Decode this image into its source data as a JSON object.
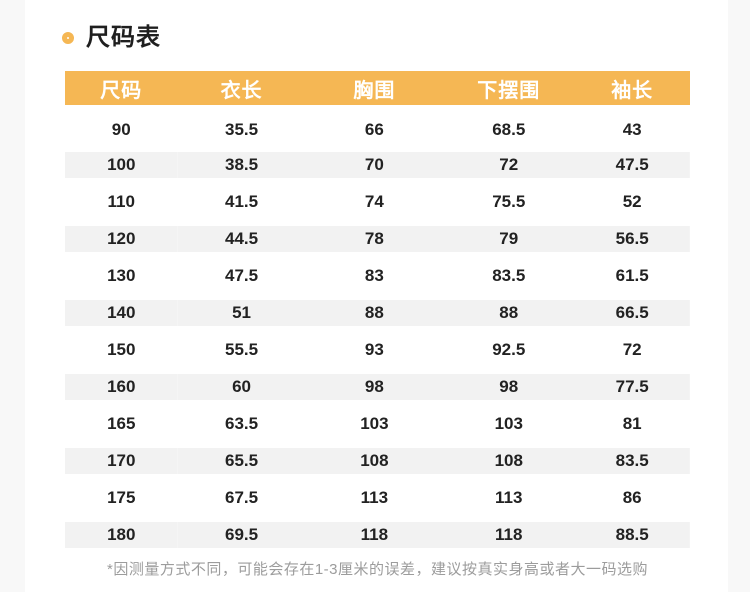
{
  "section": {
    "title": "尺码表",
    "footnote": "*因测量方式不同，可能会存在1-3厘米的误差，建议按真实身高或者大一码选购"
  },
  "icons": {
    "bullet": "ring-icon"
  },
  "colors": {
    "header_bg": "#f5b754",
    "header_text": "#ffffff",
    "stripe_bg": "#f2f2f2",
    "gutter_bg": "#f8f8f8",
    "title_ring": "#f5b754",
    "cell_text": "#222222",
    "footnote_text": "#9c9c9c"
  },
  "chart_data": {
    "type": "table",
    "title": "尺码表",
    "columns": [
      "尺码",
      "衣长",
      "胸围",
      "下摆围",
      "袖长"
    ],
    "rows": [
      [
        "90",
        "35.5",
        "66",
        "68.5",
        "43"
      ],
      [
        "100",
        "38.5",
        "70",
        "72",
        "47.5"
      ],
      [
        "110",
        "41.5",
        "74",
        "75.5",
        "52"
      ],
      [
        "120",
        "44.5",
        "78",
        "79",
        "56.5"
      ],
      [
        "130",
        "47.5",
        "83",
        "83.5",
        "61.5"
      ],
      [
        "140",
        "51",
        "88",
        "88",
        "66.5"
      ],
      [
        "150",
        "55.5",
        "93",
        "92.5",
        "72"
      ],
      [
        "160",
        "60",
        "98",
        "98",
        "77.5"
      ],
      [
        "165",
        "63.5",
        "103",
        "103",
        "81"
      ],
      [
        "170",
        "65.5",
        "108",
        "108",
        "83.5"
      ],
      [
        "175",
        "67.5",
        "113",
        "113",
        "86"
      ],
      [
        "180",
        "69.5",
        "118",
        "118",
        "88.5"
      ]
    ],
    "striped_row_indices": [
      1,
      3,
      5,
      7,
      9,
      11
    ],
    "layout": {
      "header_position": "top",
      "grid": false,
      "zebra_striping": true
    }
  }
}
